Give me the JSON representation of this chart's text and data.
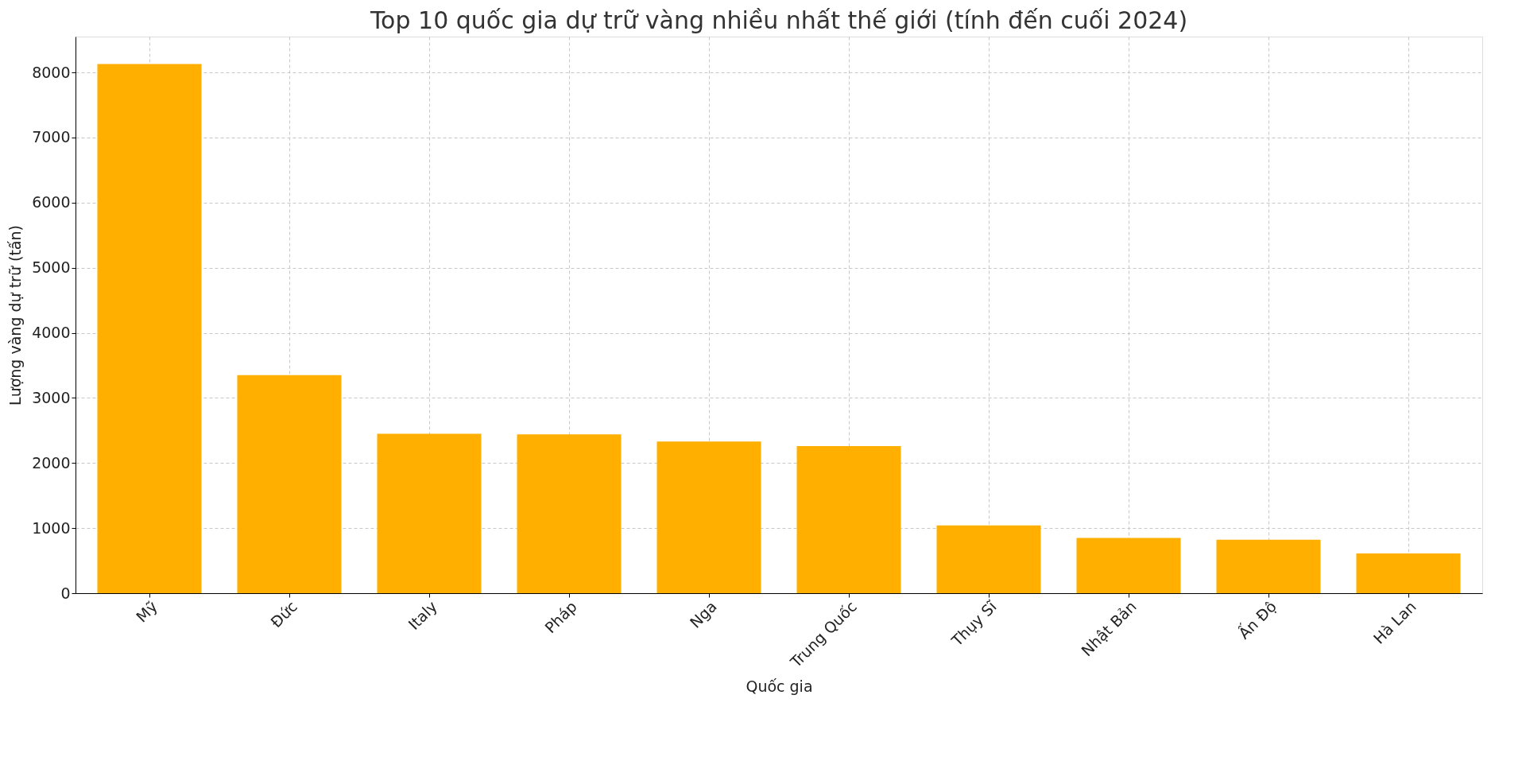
{
  "chart_data": {
    "type": "bar",
    "title": "Top 10 quốc gia dự trữ vàng nhiều nhất thế giới (tính đến cuối 2024)",
    "xlabel": "Quốc gia",
    "ylabel": "Lượng vàng dự trữ (tấn)",
    "categories": [
      "Mỹ",
      "Đức",
      "Italy",
      "Pháp",
      "Nga",
      "Trung Quốc",
      "Thụy Sĩ",
      "Nhật Bản",
      "Ấn Độ",
      "Hà Lan"
    ],
    "values": [
      8130,
      3350,
      2450,
      2440,
      2330,
      2260,
      1040,
      850,
      820,
      610
    ],
    "color": "#ffaf00",
    "ylim": [
      0,
      8550
    ],
    "yticks": [
      0,
      1000,
      2000,
      3000,
      4000,
      5000,
      6000,
      7000,
      8000
    ],
    "grid": true
  }
}
